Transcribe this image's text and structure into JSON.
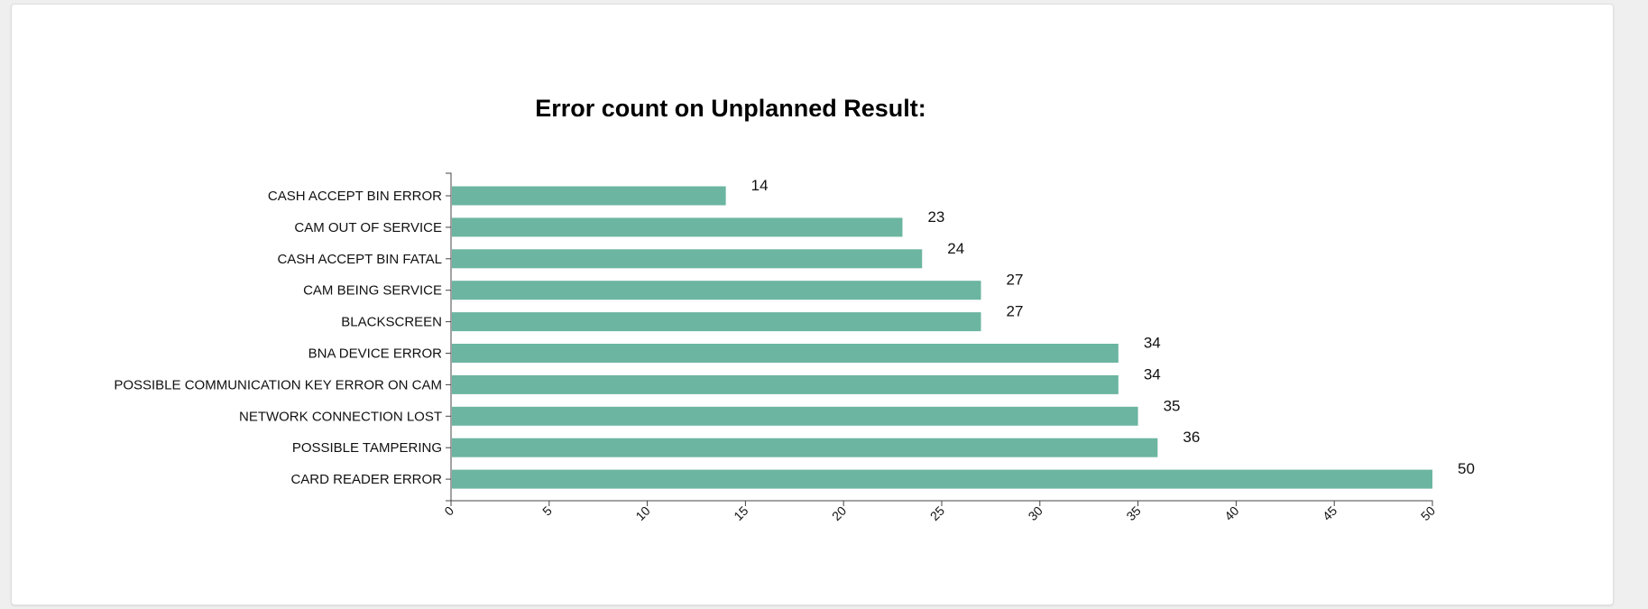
{
  "chart_data": {
    "type": "bar",
    "orientation": "horizontal",
    "title": "Error count on Unplanned Result:",
    "xlabel": "",
    "ylabel": "",
    "xlim": [
      0,
      50
    ],
    "xticks": [
      "0",
      "5",
      "10",
      "15",
      "20",
      "25",
      "30",
      "35",
      "40",
      "45",
      "50"
    ],
    "bar_color": "#6bb5a1",
    "grid": false,
    "categories": [
      "CASH ACCEPT BIN ERROR",
      "CAM OUT OF SERVICE",
      "CASH ACCEPT BIN FATAL",
      "CAM BEING SERVICE",
      "BLACKSCREEN",
      "BNA DEVICE ERROR",
      "POSSIBLE COMMUNICATION KEY ERROR ON CAM",
      "NETWORK CONNECTION LOST",
      "POSSIBLE TAMPERING",
      "CARD READER ERROR"
    ],
    "values": [
      14,
      23,
      24,
      27,
      27,
      34,
      34,
      35,
      36,
      50
    ],
    "value_labels": [
      "14",
      "23",
      "24",
      "27",
      "27",
      "34",
      "34",
      "35",
      "36",
      "50"
    ]
  }
}
